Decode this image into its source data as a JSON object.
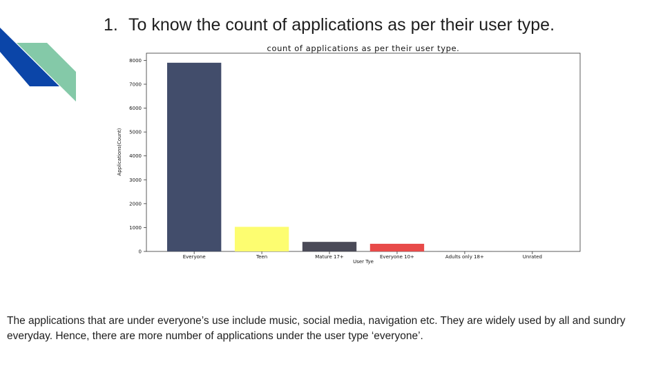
{
  "slide": {
    "number": "1.",
    "heading": "To know the count of applications as per their user type.",
    "paragraph": "The applications that are under everyone’s use include music, social media, navigation etc. They are widely used by all and sundry everyday. Hence, there are more number of applications under the user type ‘everyone’."
  },
  "colors": {
    "deco_blue": "#0b45a8",
    "deco_green": "#84c9a8"
  },
  "chart_data": {
    "type": "bar",
    "title": "count of applications as per their user type.",
    "xlabel": "User Tye",
    "ylabel": "Applications(Count)",
    "categories": [
      "Everyone",
      "Teen",
      "Mature 17+",
      "Everyone 10+",
      "Adults only 18+",
      "Unrated"
    ],
    "values": [
      7900,
      1030,
      400,
      320,
      3,
      2
    ],
    "colors": [
      "#424d6b",
      "#fdfd70",
      "#4a4a57",
      "#e84a49",
      "#4a4a57",
      "#4a4a57"
    ],
    "ylim": [
      0,
      8300
    ],
    "yticks": [
      0,
      1000,
      2000,
      3000,
      4000,
      5000,
      6000,
      7000,
      8000
    ],
    "grid": false
  }
}
